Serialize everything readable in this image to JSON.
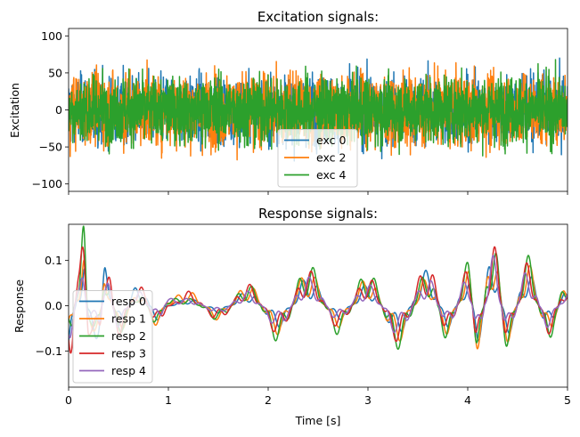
{
  "chart_data": [
    {
      "type": "line",
      "title": "Excitation signals:",
      "xlabel": "",
      "ylabel": "Excitation",
      "xlim": [
        0,
        5
      ],
      "ylim": [
        -110,
        110
      ],
      "yticks": [
        -100,
        -50,
        0,
        50,
        100
      ],
      "xticks": [
        0,
        1,
        2,
        3,
        4,
        5
      ],
      "xtick_labels_visible": false,
      "grid": false,
      "legend": {
        "placement": "lower-center",
        "entries": [
          "exc 0",
          "exc 2",
          "exc 4"
        ]
      },
      "series": [
        {
          "name": "exc 0",
          "color": "#1f77b4",
          "signal": "broadband random noise",
          "std": 22,
          "min": -99,
          "max": 95
        },
        {
          "name": "exc 2",
          "color": "#ff7f0e",
          "signal": "broadband random noise",
          "std": 24,
          "min": -91,
          "max": 101
        },
        {
          "name": "exc 4",
          "color": "#2ca02c",
          "signal": "broadband random noise",
          "std": 22,
          "min": -62,
          "max": 68
        }
      ]
    },
    {
      "type": "line",
      "title": "Response signals:",
      "xlabel": "Time [s]",
      "ylabel": "Response",
      "xlim": [
        0,
        5
      ],
      "ylim": [
        -0.18,
        0.18
      ],
      "yticks": [
        -0.1,
        0.0,
        0.1
      ],
      "xticks": [
        0,
        1,
        2,
        3,
        4,
        5
      ],
      "grid": false,
      "legend": {
        "placement": "lower-left",
        "entries": [
          "resp 0",
          "resp 1",
          "resp 2",
          "resp 3",
          "resp 4"
        ]
      },
      "x": [
        0.0,
        0.1,
        0.15,
        0.2,
        0.3,
        0.37,
        0.5,
        0.7,
        0.9,
        1.0,
        1.2,
        1.5,
        1.8,
        2.1,
        2.4,
        2.7,
        3.0,
        3.3,
        3.6,
        3.8,
        4.0,
        4.1,
        4.25,
        4.4,
        4.6,
        4.8,
        5.0
      ],
      "series": [
        {
          "name": "resp 0",
          "color": "#1f77b4",
          "values": [
            -0.08,
            0.02,
            0.08,
            -0.02,
            -0.05,
            0.06,
            -0.03,
            0.03,
            -0.02,
            0.0,
            0.01,
            -0.01,
            0.02,
            -0.03,
            0.04,
            -0.02,
            0.03,
            -0.04,
            0.05,
            -0.03,
            0.04,
            -0.05,
            0.08,
            -0.04,
            0.05,
            -0.03,
            0.02
          ]
        },
        {
          "name": "resp 1",
          "color": "#ff7f0e",
          "values": [
            -0.06,
            0.03,
            0.07,
            -0.03,
            -0.04,
            0.05,
            -0.04,
            0.02,
            -0.03,
            0.01,
            0.02,
            -0.02,
            0.03,
            -0.04,
            0.05,
            -0.03,
            0.04,
            -0.05,
            0.04,
            -0.04,
            0.05,
            -0.06,
            0.09,
            -0.05,
            0.06,
            -0.04,
            0.03
          ]
        },
        {
          "name": "resp 2",
          "color": "#2ca02c",
          "values": [
            -0.07,
            0.04,
            0.11,
            -0.02,
            -0.05,
            0.06,
            -0.04,
            0.02,
            -0.03,
            0.01,
            0.01,
            -0.02,
            0.03,
            -0.05,
            0.06,
            -0.04,
            0.05,
            -0.06,
            0.05,
            -0.05,
            0.06,
            -0.06,
            0.1,
            -0.06,
            0.07,
            -0.05,
            0.04
          ]
        },
        {
          "name": "resp 3",
          "color": "#d62728",
          "values": [
            -0.1,
            0.05,
            0.09,
            -0.04,
            -0.06,
            0.07,
            -0.04,
            0.03,
            -0.03,
            0.0,
            0.02,
            -0.02,
            0.03,
            -0.04,
            0.05,
            -0.03,
            0.04,
            -0.05,
            0.06,
            -0.04,
            0.05,
            -0.06,
            0.09,
            -0.05,
            0.06,
            -0.04,
            0.03
          ]
        },
        {
          "name": "resp 4",
          "color": "#9467bd",
          "values": [
            -0.05,
            0.02,
            0.06,
            -0.02,
            -0.03,
            0.04,
            -0.03,
            0.02,
            -0.02,
            0.01,
            0.01,
            -0.01,
            0.02,
            -0.03,
            0.04,
            -0.02,
            0.03,
            -0.04,
            0.04,
            -0.03,
            0.04,
            -0.05,
            0.07,
            -0.04,
            0.05,
            -0.03,
            0.02
          ]
        }
      ]
    }
  ]
}
